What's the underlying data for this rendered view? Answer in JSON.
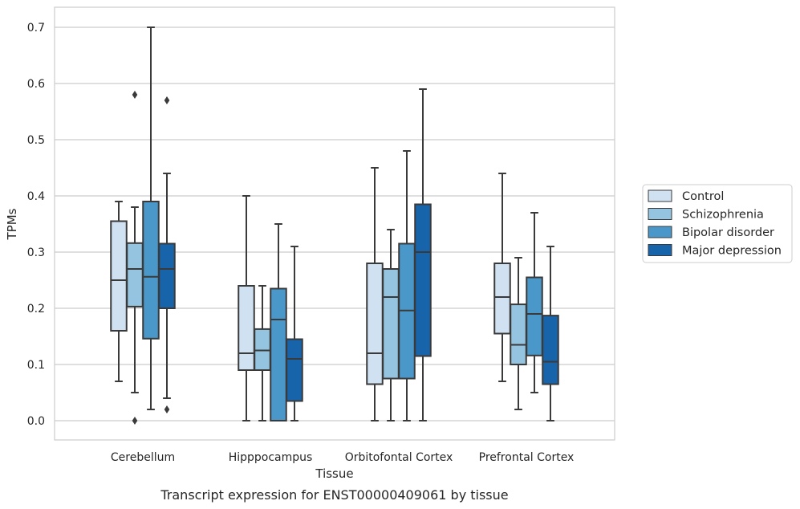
{
  "caption": "Transcript expression for ENST00000409061 by tissue",
  "chart_data": {
    "type": "box",
    "title": "",
    "xlabel": "Tissue",
    "ylabel": "TPMs",
    "ylim": [
      -0.035,
      0.735
    ],
    "yticks": [
      0.0,
      0.1,
      0.2,
      0.3,
      0.4,
      0.5,
      0.6,
      0.7
    ],
    "ytick_labels": [
      "0.0",
      "0.1",
      "0.2",
      "0.3",
      "0.4",
      "0.5",
      "0.6",
      "0.7"
    ],
    "grid": "horizontal",
    "legend_position": "right",
    "categories": [
      "Cerebellum",
      "Hipppocampus",
      "Orbitofontal Cortex",
      "Prefrontal Cortex"
    ],
    "series": [
      {
        "name": "Control",
        "color": "#d0e1f2",
        "boxes": [
          {
            "whisker_low": 0.07,
            "q1": 0.16,
            "median": 0.25,
            "q3": 0.355,
            "whisker_high": 0.39,
            "outliers": []
          },
          {
            "whisker_low": 0.0,
            "q1": 0.09,
            "median": 0.12,
            "q3": 0.24,
            "whisker_high": 0.4,
            "outliers": []
          },
          {
            "whisker_low": 0.0,
            "q1": 0.065,
            "median": 0.12,
            "q3": 0.28,
            "whisker_high": 0.45,
            "outliers": []
          },
          {
            "whisker_low": 0.07,
            "q1": 0.155,
            "median": 0.22,
            "q3": 0.28,
            "whisker_high": 0.44,
            "outliers": []
          }
        ]
      },
      {
        "name": "Schizophrenia",
        "color": "#94c4df",
        "boxes": [
          {
            "whisker_low": 0.05,
            "q1": 0.203,
            "median": 0.27,
            "q3": 0.316,
            "whisker_high": 0.38,
            "outliers": [
              0.58,
              0.0
            ]
          },
          {
            "whisker_low": 0.0,
            "q1": 0.09,
            "median": 0.125,
            "q3": 0.163,
            "whisker_high": 0.24,
            "outliers": []
          },
          {
            "whisker_low": 0.0,
            "q1": 0.075,
            "median": 0.22,
            "q3": 0.27,
            "whisker_high": 0.34,
            "outliers": []
          },
          {
            "whisker_low": 0.02,
            "q1": 0.1,
            "median": 0.135,
            "q3": 0.207,
            "whisker_high": 0.29,
            "outliers": []
          }
        ]
      },
      {
        "name": "Bipolar disorder",
        "color": "#4a98c9",
        "boxes": [
          {
            "whisker_low": 0.02,
            "q1": 0.146,
            "median": 0.256,
            "q3": 0.39,
            "whisker_high": 0.7,
            "outliers": []
          },
          {
            "whisker_low": 0.0,
            "q1": 0.0,
            "median": 0.18,
            "q3": 0.235,
            "whisker_high": 0.35,
            "outliers": []
          },
          {
            "whisker_low": 0.0,
            "q1": 0.075,
            "median": 0.196,
            "q3": 0.315,
            "whisker_high": 0.48,
            "outliers": []
          },
          {
            "whisker_low": 0.05,
            "q1": 0.116,
            "median": 0.19,
            "q3": 0.255,
            "whisker_high": 0.37,
            "outliers": []
          }
        ]
      },
      {
        "name": "Major depression",
        "color": "#1764ab",
        "boxes": [
          {
            "whisker_low": 0.04,
            "q1": 0.2,
            "median": 0.27,
            "q3": 0.315,
            "whisker_high": 0.44,
            "outliers": [
              0.57,
              0.02
            ]
          },
          {
            "whisker_low": 0.0,
            "q1": 0.035,
            "median": 0.11,
            "q3": 0.145,
            "whisker_high": 0.31,
            "outliers": []
          },
          {
            "whisker_low": 0.0,
            "q1": 0.115,
            "median": 0.3,
            "q3": 0.385,
            "whisker_high": 0.59,
            "outliers": []
          },
          {
            "whisker_low": 0.0,
            "q1": 0.065,
            "median": 0.105,
            "q3": 0.187,
            "whisker_high": 0.31,
            "outliers": []
          }
        ]
      }
    ]
  }
}
